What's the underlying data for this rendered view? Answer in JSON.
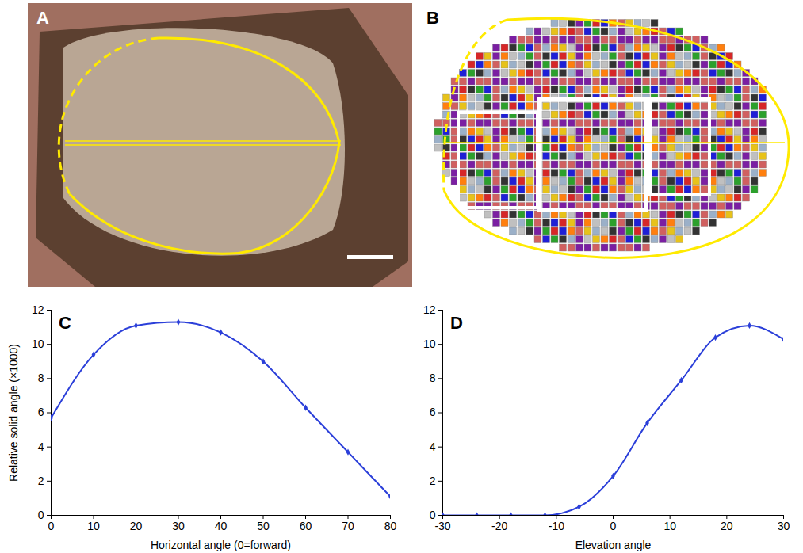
{
  "image_panels": [
    {
      "panel": "A"
    },
    {
      "panel": "B"
    }
  ],
  "chart_data": [
    {
      "panel": "C",
      "type": "line",
      "color": "#2b3fd9",
      "marker": "diamond",
      "x": [
        0,
        10,
        20,
        30,
        40,
        50,
        60,
        70,
        80
      ],
      "values": [
        5.7,
        9.4,
        11.1,
        11.3,
        10.7,
        9.0,
        6.3,
        3.7,
        1.1
      ],
      "xlim": [
        0,
        80
      ],
      "xticks": [
        0,
        10,
        20,
        30,
        40,
        50,
        60,
        70,
        80
      ],
      "ylim": [
        0,
        12
      ],
      "yticks": [
        0,
        2,
        4,
        6,
        8,
        10,
        12
      ],
      "xlabel": "Horizontal angle (0=forward)",
      "ylabel": "Relative solid angle (×1000)"
    },
    {
      "panel": "D",
      "type": "line",
      "color": "#2b3fd9",
      "marker": "diamond",
      "x": [
        -30,
        -24,
        -18,
        -12,
        -6,
        0,
        6,
        12,
        18,
        24,
        30
      ],
      "values": [
        0,
        0,
        0,
        0,
        0.5,
        2.3,
        5.4,
        7.9,
        10.4,
        11.1,
        10.3
      ],
      "xlim": [
        -30,
        30
      ],
      "xticks": [
        -30,
        -20,
        -10,
        0,
        10,
        20,
        30
      ],
      "ylim": [
        0,
        12
      ],
      "yticks": [
        0,
        2,
        4,
        6,
        8,
        10,
        12
      ],
      "xlabel": "Elevation angle"
    }
  ]
}
